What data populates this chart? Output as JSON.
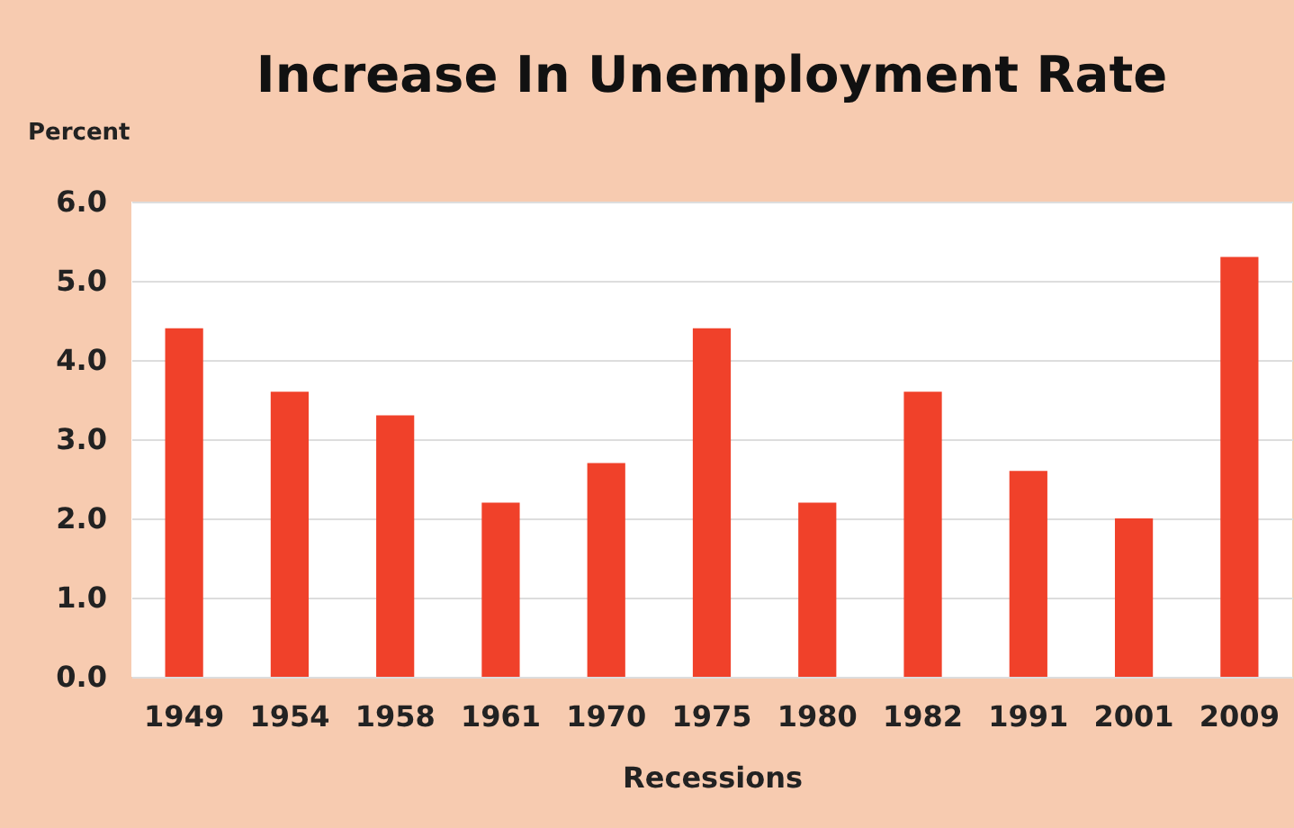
{
  "chart_data": {
    "type": "bar",
    "title": "Increase In Unemployment Rate",
    "xlabel": "Recessions",
    "ylabel": "Percent",
    "categories": [
      "1949",
      "1954",
      "1958",
      "1961",
      "1970",
      "1975",
      "1980",
      "1982",
      "1991",
      "2001",
      "2009"
    ],
    "values": [
      4.4,
      3.6,
      3.3,
      2.2,
      2.7,
      4.4,
      2.2,
      3.6,
      2.6,
      2.0,
      5.3
    ],
    "color": "#f0412a",
    "ylim": [
      0,
      6
    ],
    "yticks": [
      {
        "value": 0,
        "label": "0.0"
      },
      {
        "value": 1,
        "label": "1.0"
      },
      {
        "value": 2,
        "label": "2.0"
      },
      {
        "value": 3,
        "label": "3.0"
      },
      {
        "value": 4,
        "label": "4.0"
      },
      {
        "value": 5,
        "label": "5.0"
      },
      {
        "value": 6,
        "label": "6.0"
      }
    ],
    "grid": "y"
  }
}
